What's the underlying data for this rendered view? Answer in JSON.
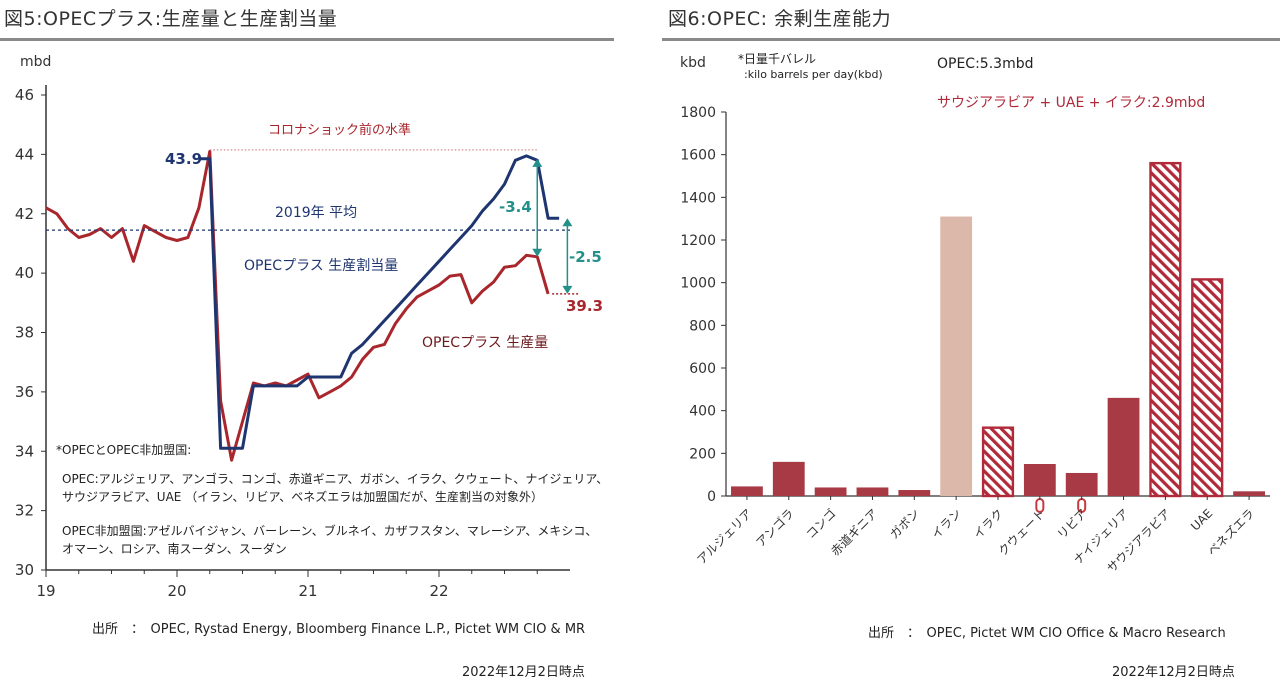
{
  "left": {
    "title": "図5:OPECプラス:生産量と生産割当量",
    "source": "出所　：　OPEC, Rystad Energy, Bloomberg Finance L.P., Pictet WM CIO & MR",
    "asof": "2022年12月2日時点",
    "footnote": {
      "heading": "*OPECとOPEC非加盟国:",
      "opec_line1": "OPEC:アルジェリア、アンゴラ、コンゴ、赤道ギニア、ガボン、イラク、クウェート、ナイジェリア、",
      "opec_line2": "サウジアラビア、UAE （イラン、リビア、ベネズエラは加盟国だが、生産割当の対象外）",
      "non_line1": "OPEC非加盟国:アゼルバイジャン、バーレーン、ブルネイ、カザフスタン、マレーシア、メキシコ、",
      "non_line2": "オマーン、ロシア、南スーダン、スーダン"
    }
  },
  "right": {
    "title": "図6:OPEC: 余剰生産能力",
    "source": "出所　：　OPEC, Pictet WM CIO Office & Macro Research",
    "asof": "2022年12月2日時点",
    "unit_note1": "*日量千バレル",
    "unit_note2": ":kilo barrels per day(kbd)",
    "opec_total": "OPEC:5.3mbd",
    "gulf_total": "サウジアラビア + UAE + イラク:2.9mbd"
  },
  "chart_data": [
    {
      "type": "line",
      "ylabel": "mbd",
      "ylim": [
        30,
        46
      ],
      "yticks": [
        "30",
        "32",
        "34",
        "36",
        "38",
        "40",
        "42",
        "44",
        "46"
      ],
      "xlim": [
        2019,
        2023
      ],
      "xticks": [
        {
          "x": 2019,
          "label": "19"
        },
        {
          "x": 2020,
          "label": "20"
        },
        {
          "x": 2021,
          "label": "21"
        },
        {
          "x": 2022,
          "label": "22"
        }
      ],
      "grid": false,
      "series": [
        {
          "name": "OPECプラス 生産量",
          "color": "#a8262c",
          "points": [
            [
              2019.0,
              42.2
            ],
            [
              2019.083,
              42.0
            ],
            [
              2019.167,
              41.5
            ],
            [
              2019.25,
              41.2
            ],
            [
              2019.333,
              41.3
            ],
            [
              2019.417,
              41.5
            ],
            [
              2019.5,
              41.2
            ],
            [
              2019.583,
              41.5
            ],
            [
              2019.667,
              40.4
            ],
            [
              2019.75,
              41.6
            ],
            [
              2019.833,
              41.4
            ],
            [
              2019.917,
              41.2
            ],
            [
              2020.0,
              41.1
            ],
            [
              2020.083,
              41.2
            ],
            [
              2020.167,
              42.2
            ],
            [
              2020.25,
              44.1
            ],
            [
              2020.333,
              35.7
            ],
            [
              2020.417,
              33.7
            ],
            [
              2020.5,
              35.0
            ],
            [
              2020.583,
              36.3
            ],
            [
              2020.667,
              36.2
            ],
            [
              2020.75,
              36.3
            ],
            [
              2020.833,
              36.2
            ],
            [
              2020.917,
              36.4
            ],
            [
              2021.0,
              36.6
            ],
            [
              2021.083,
              35.8
            ],
            [
              2021.167,
              36.0
            ],
            [
              2021.25,
              36.2
            ],
            [
              2021.333,
              36.5
            ],
            [
              2021.417,
              37.1
            ],
            [
              2021.5,
              37.5
            ],
            [
              2021.583,
              37.6
            ],
            [
              2021.667,
              38.3
            ],
            [
              2021.75,
              38.8
            ],
            [
              2021.833,
              39.2
            ],
            [
              2021.917,
              39.4
            ],
            [
              2022.0,
              39.6
            ],
            [
              2022.083,
              39.9
            ],
            [
              2022.167,
              39.95
            ],
            [
              2022.25,
              39.0
            ],
            [
              2022.333,
              39.4
            ],
            [
              2022.417,
              39.7
            ],
            [
              2022.5,
              40.2
            ],
            [
              2022.583,
              40.25
            ],
            [
              2022.667,
              40.6
            ],
            [
              2022.75,
              40.55
            ],
            [
              2022.833,
              39.3
            ]
          ]
        },
        {
          "name": "OPECプラス 生産割当量",
          "color": "#1e3570",
          "points": [
            [
              2020.167,
              43.85
            ],
            [
              2020.25,
              43.85
            ],
            [
              2020.333,
              34.1
            ],
            [
              2020.5,
              34.1
            ],
            [
              2020.583,
              36.2
            ],
            [
              2020.917,
              36.2
            ],
            [
              2021.0,
              36.5
            ],
            [
              2021.25,
              36.5
            ],
            [
              2021.333,
              37.3
            ],
            [
              2021.417,
              37.6
            ],
            [
              2021.5,
              38.0
            ],
            [
              2021.583,
              38.4
            ],
            [
              2021.667,
              38.8
            ],
            [
              2021.75,
              39.2
            ],
            [
              2021.833,
              39.6
            ],
            [
              2021.917,
              40.0
            ],
            [
              2022.0,
              40.4
            ],
            [
              2022.083,
              40.8
            ],
            [
              2022.167,
              41.2
            ],
            [
              2022.25,
              41.6
            ],
            [
              2022.333,
              42.1
            ],
            [
              2022.417,
              42.5
            ],
            [
              2022.5,
              43.0
            ],
            [
              2022.583,
              43.8
            ],
            [
              2022.667,
              43.95
            ],
            [
              2022.75,
              43.8
            ],
            [
              2022.833,
              41.85
            ],
            [
              2022.917,
              41.85
            ]
          ]
        },
        {
          "name": "2019年 平均",
          "color": "#1e3570",
          "dashed": true,
          "points": [
            [
              2019.0,
              41.45
            ],
            [
              2023.0,
              41.45
            ]
          ]
        },
        {
          "name": "コロナショック前の水準",
          "color": "#d9898c",
          "dashed": true,
          "points": [
            [
              2020.25,
              44.15
            ],
            [
              2022.75,
              44.15
            ]
          ]
        }
      ],
      "annotations": [
        {
          "text": "43.9",
          "color": "#1e3570"
        },
        {
          "text": "39.3",
          "color": "#a8262c"
        },
        {
          "text": "-3.4",
          "color": "#23908a"
        },
        {
          "text": "-2.5",
          "color": "#23908a"
        },
        {
          "text": "コロナショック前の水準",
          "color": "#a8262c"
        },
        {
          "text": "2019年 平均",
          "color": "#1e3570"
        },
        {
          "text": "OPECプラス 生産割当量",
          "color": "#1e3570"
        },
        {
          "text": "OPECプラス 生産量",
          "color": "#6e1a1d"
        }
      ],
      "arrows": [
        {
          "x": 2022.75,
          "from": 43.85,
          "to": 40.55,
          "color": "#23908a"
        },
        {
          "x": 2022.98,
          "from": 41.85,
          "to": 39.3,
          "color": "#23908a"
        }
      ]
    },
    {
      "type": "bar",
      "ylabel": "kbd",
      "ylim": [
        0,
        1800
      ],
      "yticks": [
        "0",
        "200",
        "400",
        "600",
        "800",
        "1000",
        "1200",
        "1400",
        "1600",
        "1800"
      ],
      "grid": false,
      "categories": [
        "アルジェリア",
        "アンゴラ",
        "コンゴ",
        "赤道ギニア",
        "ガボン",
        "イラン",
        "イラク",
        "クウェート",
        "リビア",
        "ナイジェリア",
        "サウジアラビア",
        "UAE",
        "ベネズエラ"
      ],
      "values": [
        45,
        160,
        40,
        40,
        28,
        1310,
        325,
        150,
        108,
        460,
        1565,
        1020,
        22
      ],
      "styles": [
        "solid",
        "solid",
        "solid",
        "solid",
        "solid",
        "light",
        "hatched",
        "solid",
        "solid",
        "solid",
        "hatched",
        "hatched",
        "solid"
      ],
      "marker_zero": [
        false,
        false,
        false,
        false,
        false,
        false,
        false,
        true,
        true,
        false,
        false,
        false,
        false
      ],
      "colors": {
        "solid": "#a73a45",
        "light": "#dcb8aa",
        "hatched": "#b02a3a"
      }
    }
  ]
}
